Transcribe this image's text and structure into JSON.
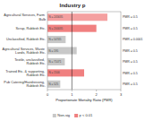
{
  "chart_data": {
    "type": "bar",
    "orientation": "horizontal",
    "title": "Industry p",
    "xlabel": "Proportionate Mortality Ratio (PMR)",
    "categories": [
      "Agricultural Services, Farm Bulb",
      "Scrap, Rubbish Etc.",
      "Unclassified, Rubbish Etc.",
      "Agricultural Services, Waste Lands, Rubbish Etc.",
      "Textile, unclassified, Rubbish Etc.",
      "Trained Etc. & supporting, Rubbish Etc.",
      "Pub Catering/Hairdressing, Rubbish Etc."
    ],
    "values": [
      2.45,
      2.0,
      0.745,
      1.195,
      0.71,
      1.5,
      0.525
    ],
    "colors": [
      "#f4a0a0",
      "#f08080",
      "#c8c8c8",
      "#c8c8c8",
      "#c8c8c8",
      "#f08080",
      "#c8c8c8"
    ],
    "bar_labels": [
      "N = 245635",
      "N = 200035",
      "N = 54745",
      "N = 195",
      "N = 71071",
      "N = 1500",
      "N = 525"
    ],
    "right_labels": [
      "PMR = 0.5",
      "PMR = 0.5",
      "PMR = 0.0001",
      "PMR = 0.5",
      "PMR = 0.5",
      "PMR = 0.5",
      "PMR = 0.5"
    ],
    "xlim": [
      0,
      3.0
    ],
    "xticks": [
      0,
      1,
      2,
      3
    ],
    "reference_lines": [
      1.0
    ],
    "legend": "bottom",
    "legend_items": [
      {
        "name": "Non-sig",
        "color": "#c8c8c8"
      },
      {
        "name": "p < 0.01",
        "color": "#f08080"
      }
    ]
  }
}
